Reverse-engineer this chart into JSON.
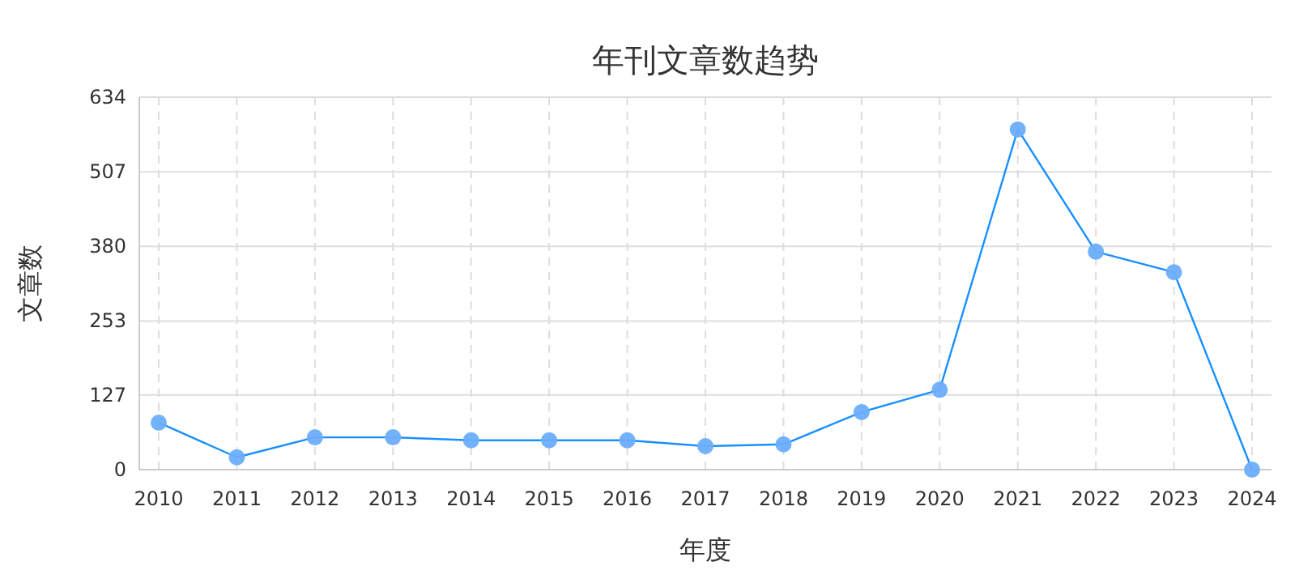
{
  "chart_data": {
    "type": "line",
    "title": "年刊文章数趋势",
    "xlabel": "年度",
    "ylabel": "文章数",
    "categories": [
      "2010",
      "2011",
      "2012",
      "2013",
      "2014",
      "2015",
      "2016",
      "2017",
      "2018",
      "2019",
      "2020",
      "2021",
      "2022",
      "2023",
      "2024"
    ],
    "series": [
      {
        "color": "#1890ff",
        "values": [
          80,
          21,
          55,
          55,
          50,
          50,
          50,
          40,
          43,
          98,
          136,
          579,
          371,
          336,
          0
        ]
      }
    ],
    "ylim": [
      0,
      634
    ],
    "yticks": [
      0,
      127,
      253,
      380,
      507,
      634
    ],
    "grid": true,
    "marker": "circle",
    "line_style": "solid"
  }
}
